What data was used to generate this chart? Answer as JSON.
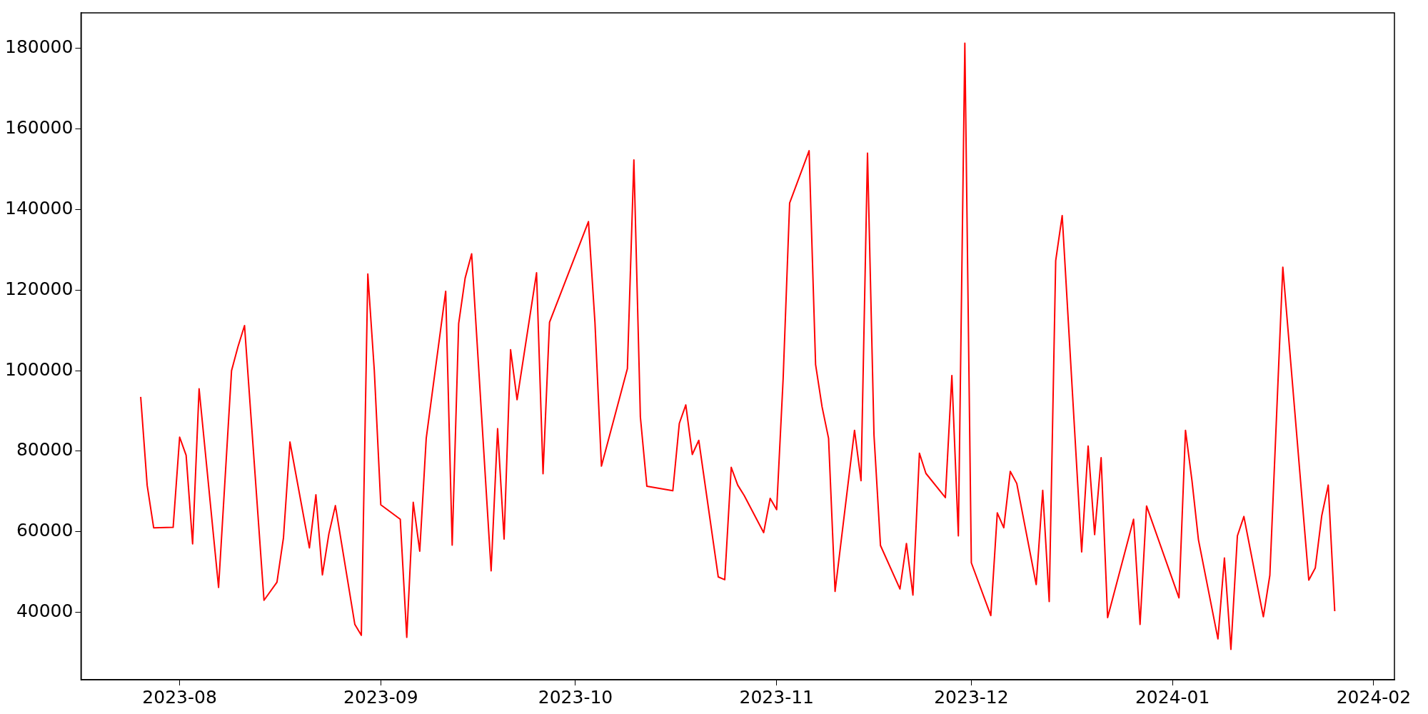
{
  "chart_data": {
    "type": "line",
    "color": "#ff0000",
    "marker": "none",
    "line_style": "solid",
    "grid": false,
    "x": [
      "2023-07-26",
      "2023-07-27",
      "2023-07-28",
      "2023-07-31",
      "2023-08-01",
      "2023-08-02",
      "2023-08-03",
      "2023-08-04",
      "2023-08-07",
      "2023-08-09",
      "2023-08-10",
      "2023-08-11",
      "2023-08-14",
      "2023-08-16",
      "2023-08-17",
      "2023-08-18",
      "2023-08-21",
      "2023-08-22",
      "2023-08-23",
      "2023-08-24",
      "2023-08-25",
      "2023-08-28",
      "2023-08-29",
      "2023-08-30",
      "2023-08-31",
      "2023-09-01",
      "2023-09-04",
      "2023-09-05",
      "2023-09-06",
      "2023-09-07",
      "2023-09-08",
      "2023-09-11",
      "2023-09-12",
      "2023-09-13",
      "2023-09-14",
      "2023-09-15",
      "2023-09-18",
      "2023-09-19",
      "2023-09-20",
      "2023-09-21",
      "2023-09-22",
      "2023-09-25",
      "2023-09-26",
      "2023-09-27",
      "2023-10-03",
      "2023-10-04",
      "2023-10-05",
      "2023-10-09",
      "2023-10-10",
      "2023-10-11",
      "2023-10-12",
      "2023-10-16",
      "2023-10-17",
      "2023-10-18",
      "2023-10-19",
      "2023-10-20",
      "2023-10-23",
      "2023-10-24",
      "2023-10-25",
      "2023-10-26",
      "2023-10-27",
      "2023-10-30",
      "2023-10-31",
      "2023-11-01",
      "2023-11-02",
      "2023-11-03",
      "2023-11-06",
      "2023-11-07",
      "2023-11-08",
      "2023-11-09",
      "2023-11-10",
      "2023-11-13",
      "2023-11-14",
      "2023-11-15",
      "2023-11-16",
      "2023-11-17",
      "2023-11-20",
      "2023-11-21",
      "2023-11-22",
      "2023-11-23",
      "2023-11-24",
      "2023-11-27",
      "2023-11-28",
      "2023-11-29",
      "2023-11-30",
      "2023-12-01",
      "2023-12-04",
      "2023-12-05",
      "2023-12-06",
      "2023-12-07",
      "2023-12-08",
      "2023-12-11",
      "2023-12-12",
      "2023-12-13",
      "2023-12-14",
      "2023-12-15",
      "2023-12-18",
      "2023-12-19",
      "2023-12-20",
      "2023-12-21",
      "2023-12-22",
      "2023-12-26",
      "2023-12-27",
      "2023-12-28",
      "2024-01-02",
      "2024-01-03",
      "2024-01-04",
      "2024-01-05",
      "2024-01-08",
      "2024-01-09",
      "2024-01-10",
      "2024-01-11",
      "2024-01-12",
      "2024-01-15",
      "2024-01-16",
      "2024-01-18",
      "2024-01-22",
      "2024-01-23",
      "2024-01-24",
      "2024-01-25",
      "2024-01-26"
    ],
    "values": [
      93500,
      71500,
      61000,
      61100,
      83500,
      79000,
      57000,
      95500,
      46200,
      100000,
      106000,
      111200,
      43000,
      47500,
      58500,
      82300,
      56000,
      69200,
      49300,
      59500,
      66500,
      37000,
      34300,
      124000,
      100000,
      66700,
      63100,
      33800,
      67300,
      55200,
      83200,
      119700,
      56700,
      111700,
      123000,
      129000,
      50300,
      85600,
      58200,
      105200,
      92800,
      124300,
      74400,
      112000,
      137000,
      112000,
      76300,
      100500,
      152300,
      88500,
      71300,
      70200,
      86900,
      91500,
      79200,
      82700,
      48800,
      48100,
      76000,
      71600,
      69000,
      59800,
      68300,
      65500,
      98000,
      141600,
      154600,
      101500,
      91000,
      83200,
      45200,
      85200,
      72700,
      154000,
      84000,
      56600,
      45800,
      57100,
      44300,
      79500,
      74500,
      68500,
      98800,
      59000,
      181300,
      52300,
      39200,
      64700,
      61000,
      75000,
      72000,
      46900,
      70300,
      42700,
      127300,
      138500,
      55000,
      81300,
      59300,
      78400,
      38700,
      63100,
      37000,
      66400,
      43600,
      85200,
      72700,
      58000,
      33400,
      53500,
      30800,
      59000,
      63800,
      38900,
      49200,
      125700,
      48000,
      51000,
      64000,
      71600,
      40300
    ],
    "xlim": [
      "2023-07-16T19:12",
      "2024-02-04T04:48"
    ],
    "xticks": [
      {
        "value": "2023-08-01",
        "label": "2023-08"
      },
      {
        "value": "2023-09-01",
        "label": "2023-09"
      },
      {
        "value": "2023-10-01",
        "label": "2023-10"
      },
      {
        "value": "2023-11-01",
        "label": "2023-11"
      },
      {
        "value": "2023-12-01",
        "label": "2023-12"
      },
      {
        "value": "2024-01-01",
        "label": "2024-01"
      },
      {
        "value": "2024-02-01",
        "label": "2024-02"
      }
    ],
    "ylim": [
      23275,
      188825
    ],
    "yticks": [
      40000,
      60000,
      80000,
      100000,
      120000,
      140000,
      160000,
      180000
    ]
  }
}
